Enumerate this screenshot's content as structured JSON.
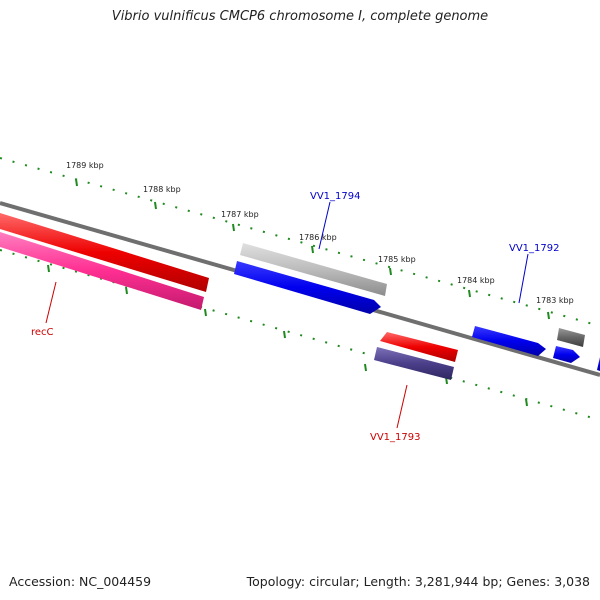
{
  "title": "Vibrio vulnificus CMCP6 chromosome I, complete genome",
  "footer": {
    "accession": "Accession: NC_004459",
    "summary": "Topology: circular; Length: 3,281,944 bp; Genes: 3,038"
  },
  "ticks": [
    "1789 kbp",
    "1788 kbp",
    "1787 kbp",
    "1786 kbp",
    "1785 kbp",
    "1784 kbp",
    "1783 kbp"
  ],
  "gene_labels": {
    "vv1_1794": "VV1_1794",
    "vv1_1792": "VV1_1792",
    "vv1_1793": "VV1_1793",
    "recc": "recC"
  },
  "colors": {
    "backbone": "#7a7a7a",
    "tick": "#1f8a1f",
    "forward_gene": "#0000ee",
    "reverse_gene": "#ee0000",
    "pink_gene": "#ff2f92",
    "purple_gene": "#4b3f8a",
    "gray_gene": "#bcbcbc",
    "dark_gray_gene": "#666666",
    "blue_label": "#0000cc",
    "red_label": "#cc0000"
  }
}
